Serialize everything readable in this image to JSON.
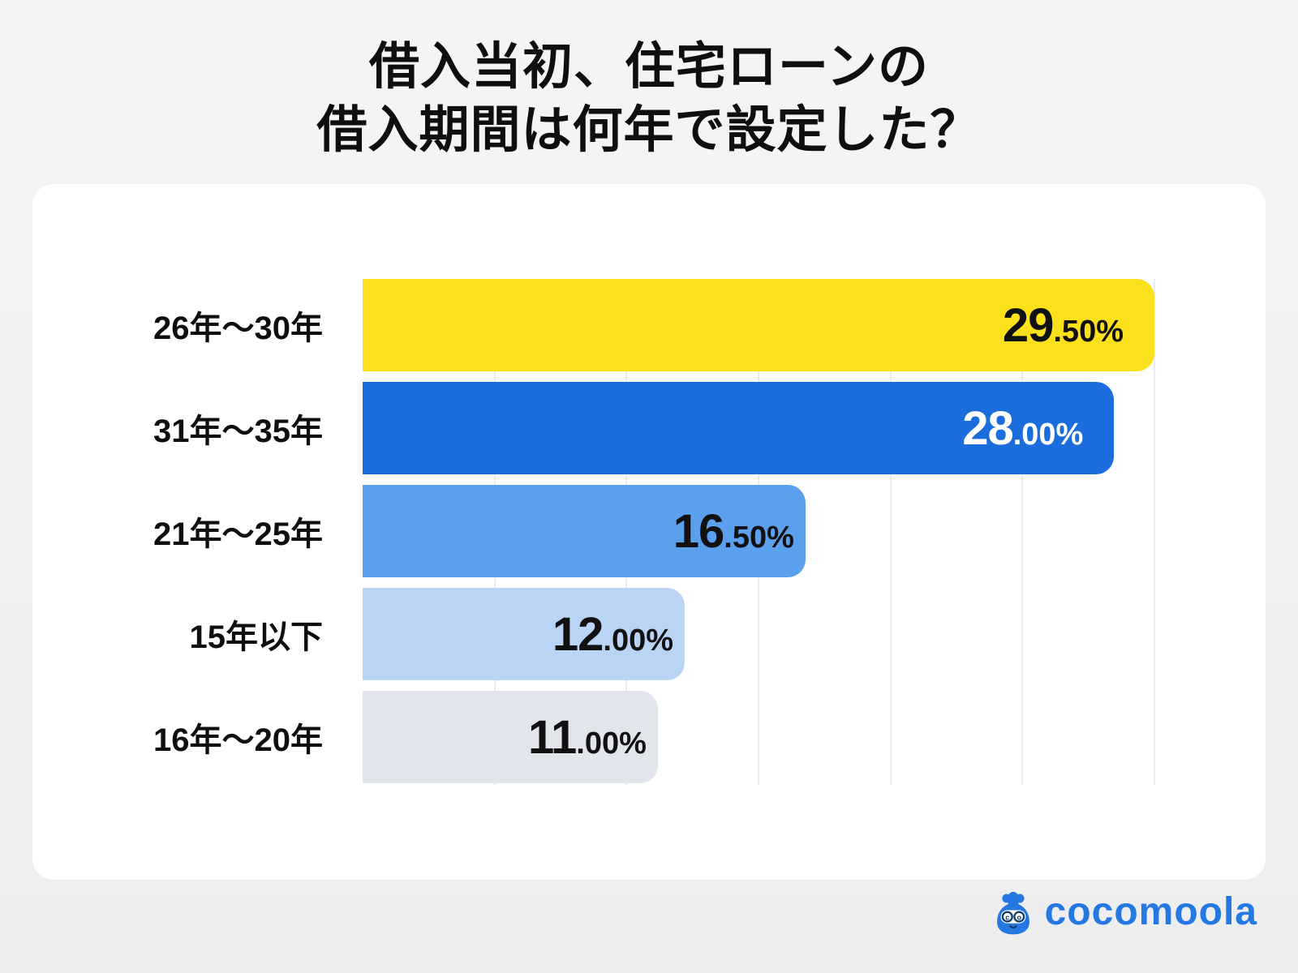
{
  "title": {
    "line1": "借入当初、住宅ローンの",
    "line2": "借入期間は何年で設定した？"
  },
  "chart_data": {
    "type": "bar",
    "orientation": "horizontal",
    "title": "借入当初、住宅ローンの借入期間は何年で設定した？",
    "categories": [
      "26年〜30年",
      "31年〜35年",
      "21年〜25年",
      "15年以下",
      "16年〜20年"
    ],
    "values": [
      29.5,
      28.0,
      16.5,
      12.0,
      11.0
    ],
    "unit": "%",
    "value_labels": [
      {
        "whole": "29",
        "fraction": ".50%"
      },
      {
        "whole": "28",
        "fraction": ".00%"
      },
      {
        "whole": "16",
        "fraction": ".50%"
      },
      {
        "whole": "12",
        "fraction": ".00%"
      },
      {
        "whole": "11",
        "fraction": ".00%"
      }
    ],
    "xlim": [
      0,
      29.5
    ],
    "grid": true,
    "grid_divisions": 6,
    "legend": false,
    "bar_colors": [
      "#FAE11C",
      "#1B6DDE",
      "#5BA0ED",
      "#BAD4F5",
      "#E2E6EC"
    ],
    "value_text_colors": [
      "#111111",
      "#FFFFFF",
      "#111111",
      "#111111",
      "#111111"
    ],
    "gridline_color": "#ececec"
  },
  "footer": {
    "logo_text": "cocomoola",
    "logo_color": "#2578E1"
  }
}
